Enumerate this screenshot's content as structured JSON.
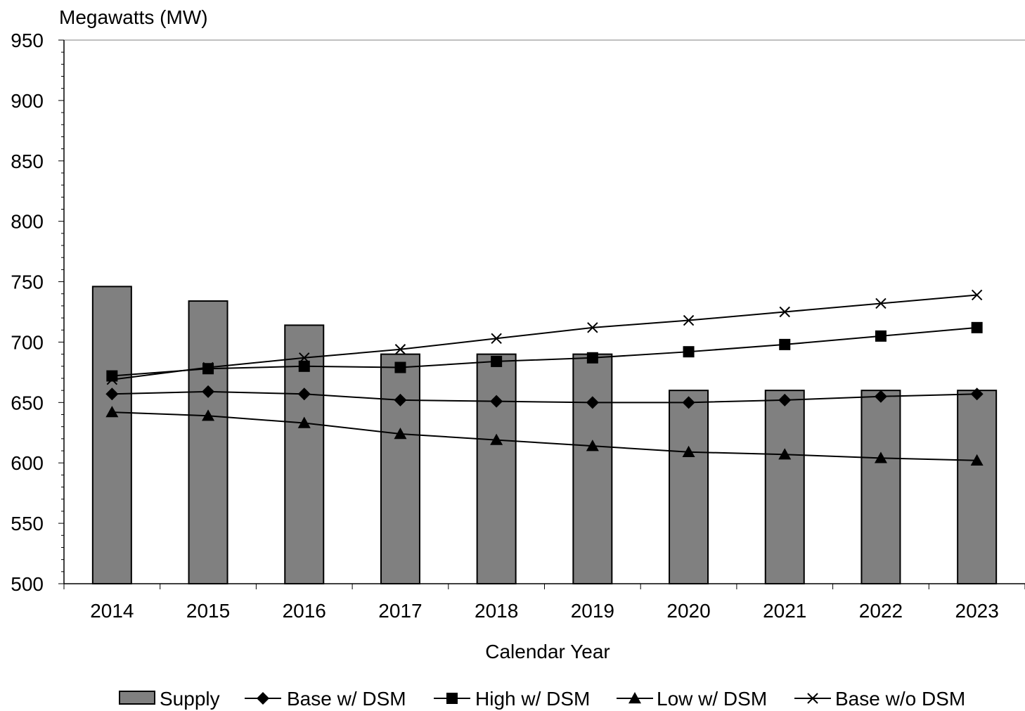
{
  "chart_data": {
    "type": "bar",
    "title": "",
    "ylabel": "Megawatts (MW)",
    "xlabel": "Calendar Year",
    "ylim": [
      500,
      950
    ],
    "yticks": [
      "500",
      "550",
      "600",
      "650",
      "700",
      "750",
      "800",
      "850",
      "900",
      "950"
    ],
    "categories": [
      "2014",
      "2015",
      "2016",
      "2017",
      "2018",
      "2019",
      "2020",
      "2021",
      "2022",
      "2023"
    ],
    "series": [
      {
        "name": "Supply",
        "kind": "bar",
        "color": "#808080",
        "values": [
          746,
          734,
          714,
          690,
          690,
          690,
          660,
          660,
          660,
          660
        ]
      },
      {
        "name": "Base w/ DSM",
        "kind": "line",
        "marker": "diamond",
        "values": [
          657,
          659,
          657,
          652,
          651,
          650,
          650,
          652,
          655,
          657
        ]
      },
      {
        "name": "High w/ DSM",
        "kind": "line",
        "marker": "square",
        "values": [
          672,
          678,
          680,
          679,
          684,
          687,
          692,
          698,
          705,
          712
        ]
      },
      {
        "name": "Low w/ DSM",
        "kind": "line",
        "marker": "triangle",
        "values": [
          642,
          639,
          633,
          624,
          619,
          614,
          609,
          607,
          604,
          602
        ]
      },
      {
        "name": "Base w/o DSM",
        "kind": "line",
        "marker": "x",
        "values": [
          669,
          679,
          687,
          694,
          703,
          712,
          718,
          725,
          732,
          739
        ]
      }
    ],
    "legend_position": "bottom",
    "grid": false
  }
}
